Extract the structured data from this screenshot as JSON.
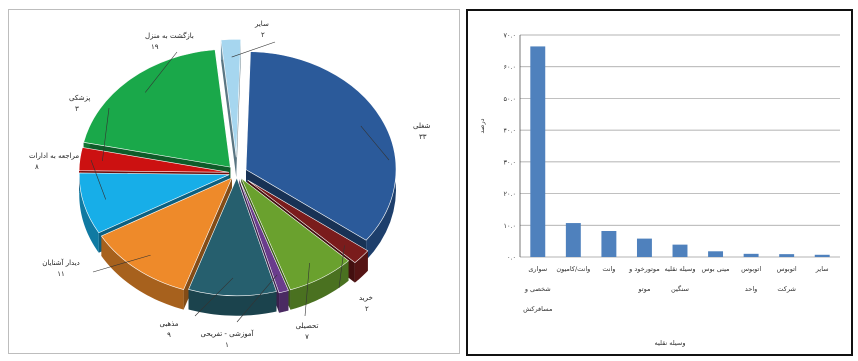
{
  "chart_data": [
    {
      "type": "pie",
      "exploded": true,
      "three_d": true,
      "title": "",
      "labels": [
        "شغلی",
        "خرید",
        "تحصیلی",
        "آموزشی - تفریحی",
        "مذهبی",
        "دیدار آشنایان",
        "مراجعه به ادارات",
        "پزشکی",
        "بازگشت به منزل",
        "سایر"
      ],
      "value_labels": [
        "۳۳",
        "۲",
        "۷",
        "۱",
        "۹",
        "۱۱",
        "۸",
        "۳",
        "۱۹",
        "۲"
      ],
      "values": [
        33,
        2,
        7,
        1,
        9,
        11,
        8,
        3,
        19,
        2
      ],
      "colors": [
        "#2b5a9a",
        "#7a1c1c",
        "#6aa12e",
        "#6a3c8c",
        "#265f6e",
        "#ee8a2a",
        "#17aee8",
        "#cc1111",
        "#1aa84a",
        "#a6d6ef"
      ]
    },
    {
      "type": "bar",
      "title": "",
      "ylabel": "درصد",
      "xlabel": "وسیله نقلیه",
      "categories": [
        "سواری شخصی و مسافرکش",
        "وانت/کامیون",
        "وانت",
        "موتورخود و موتو",
        "وسیله نقلیه سنگین",
        "مینی بوس",
        "اتوبوس واحد",
        "اتوبوس شرکت",
        "سایر"
      ],
      "values": [
        66.4,
        10.7,
        8.2,
        5.8,
        3.9,
        1.8,
        1.0,
        0.9,
        0.7
      ],
      "ylim": [
        0,
        70
      ],
      "yticks": [
        0,
        10,
        20,
        30,
        40,
        50,
        60,
        70
      ],
      "ytick_labels": [
        "۰.۰",
        "۱۰.۰",
        "۲۰.۰",
        "۳۰.۰",
        "۴۰.۰",
        "۵۰.۰",
        "۶۰.۰",
        "۷۰.۰"
      ],
      "grid": true,
      "color": "#4f81bd"
    }
  ]
}
